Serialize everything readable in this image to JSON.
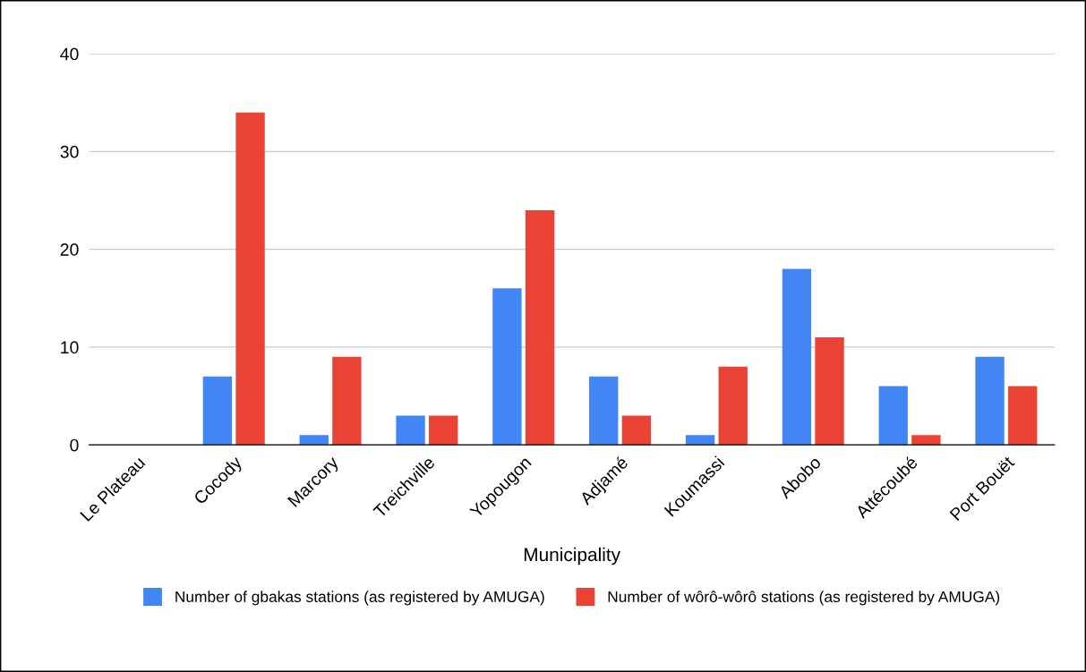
{
  "chart_data": {
    "type": "bar",
    "xlabel": "Municipality",
    "categories": [
      "Le Plateau",
      "Cocody",
      "Marcory",
      "Treichville",
      "Yopougon",
      "Adjamé",
      "Koumassi",
      "Abobo",
      "Attécoubé",
      "Port Bouët"
    ],
    "series": [
      {
        "name": "Number of gbakas stations (as registered by AMUGA)",
        "color": "#4285f4",
        "values": [
          0,
          7,
          1,
          3,
          16,
          7,
          1,
          18,
          6,
          9
        ]
      },
      {
        "name": "Number of wôrô-wôrô stations (as registered by AMUGA)",
        "color": "#ea4335",
        "values": [
          0,
          34,
          9,
          3,
          24,
          3,
          8,
          11,
          1,
          6
        ]
      }
    ],
    "ylim": [
      0,
      40
    ],
    "yticks": [
      0,
      10,
      20,
      30,
      40
    ],
    "grid": "y",
    "legend": "bottom"
  }
}
